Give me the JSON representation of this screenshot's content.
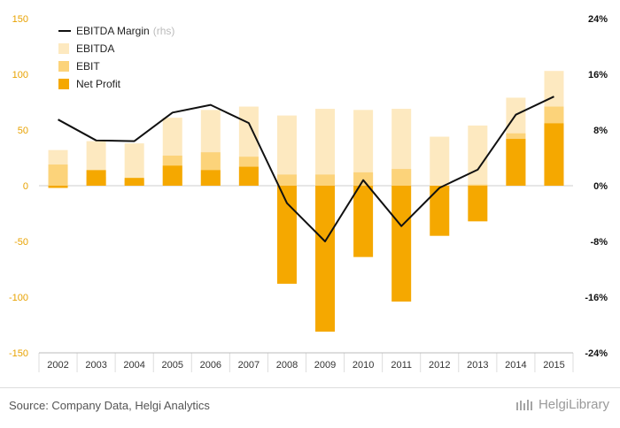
{
  "chart_data": {
    "type": "bar",
    "title": "",
    "categories": [
      "2002",
      "2003",
      "2004",
      "2005",
      "2006",
      "2007",
      "2008",
      "2009",
      "2010",
      "2011",
      "2012",
      "2013",
      "2014",
      "2015"
    ],
    "series": [
      {
        "name": "EBITDA",
        "kind": "bar",
        "axis": "left",
        "color": "#fde9c0",
        "values": [
          32,
          40,
          38,
          61,
          68,
          71,
          63,
          69,
          68,
          69,
          44,
          54,
          79,
          103
        ]
      },
      {
        "name": "EBIT",
        "kind": "bar",
        "axis": "left",
        "color": "#fcd37a",
        "values": [
          19,
          8,
          5,
          27,
          30,
          26,
          10,
          10,
          12,
          15,
          -5,
          1,
          47,
          71
        ]
      },
      {
        "name": "Net Profit",
        "kind": "bar",
        "axis": "left",
        "color": "#f5a800",
        "values": [
          -2,
          14,
          7,
          18,
          14,
          17,
          -88,
          -131,
          -64,
          -104,
          -45,
          -32,
          42,
          56
        ]
      },
      {
        "name": "EBITDA Margin",
        "kind": "line",
        "axis": "right",
        "color": "#111111",
        "values": [
          9.5,
          6.5,
          6.4,
          10.5,
          11.6,
          9.0,
          -2.5,
          -8.0,
          0.8,
          -5.8,
          -0.3,
          2.3,
          10.2,
          12.8
        ]
      }
    ],
    "legend": [
      {
        "label": "EBITDA Margin",
        "suffix": "(rhs)",
        "swatch": "line",
        "color": "#111111"
      },
      {
        "label": "EBITDA",
        "suffix": "",
        "swatch": "box",
        "color": "#fde9c0"
      },
      {
        "label": "EBIT",
        "suffix": "",
        "swatch": "box",
        "color": "#fcd37a"
      },
      {
        "label": "Net Profit",
        "suffix": "",
        "swatch": "box",
        "color": "#f5a800"
      }
    ],
    "y_left": {
      "min": -150,
      "max": 150,
      "ticks": [
        150,
        100,
        50,
        0,
        -50,
        -100,
        -150
      ],
      "color": "#e8a200"
    },
    "y_right": {
      "min": -24,
      "max": 24,
      "ticks": [
        "24%",
        "16%",
        "8%",
        "0%",
        "-8%",
        "-16%",
        "-24%"
      ],
      "color": "#111111"
    },
    "grid": false,
    "legend_position": "top-left"
  },
  "footer": {
    "source": "Source: Company Data, Helgi Analytics",
    "brand": "HelgiLibrary"
  }
}
